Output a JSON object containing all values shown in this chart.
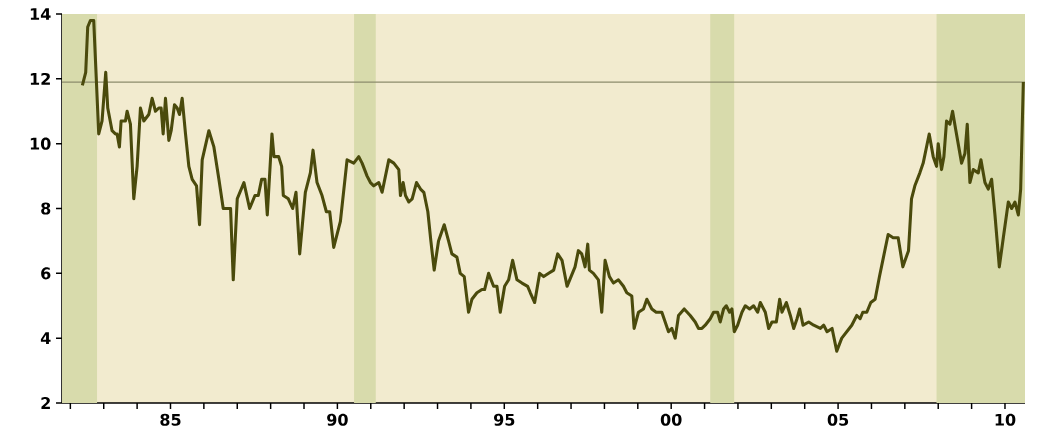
{
  "chart_data": {
    "type": "line",
    "x": [
      1982.36,
      1982.46,
      1982.52,
      1982.6,
      1982.7,
      1982.85,
      1982.95,
      1983.06,
      1983.12,
      1983.25,
      1983.35,
      1983.4,
      1983.47,
      1983.52,
      1983.65,
      1983.7,
      1983.8,
      1983.9,
      1984.0,
      1984.1,
      1984.2,
      1984.35,
      1984.45,
      1984.55,
      1984.65,
      1984.72,
      1984.78,
      1984.85,
      1984.95,
      1985.02,
      1985.12,
      1985.2,
      1985.27,
      1985.35,
      1985.45,
      1985.55,
      1985.65,
      1985.78,
      1985.87,
      1985.95,
      1986.15,
      1986.3,
      1986.45,
      1986.58,
      1986.8,
      1986.88,
      1987.0,
      1987.2,
      1987.37,
      1987.53,
      1987.63,
      1987.73,
      1987.83,
      1987.9,
      1988.04,
      1988.1,
      1988.24,
      1988.33,
      1988.38,
      1988.53,
      1988.66,
      1988.76,
      1988.87,
      1989.04,
      1989.19,
      1989.27,
      1989.39,
      1989.54,
      1989.67,
      1989.77,
      1989.89,
      1990.09,
      1990.29,
      1990.49,
      1990.64,
      1990.74,
      1990.89,
      1990.99,
      1991.09,
      1991.24,
      1991.34,
      1991.54,
      1991.69,
      1991.84,
      1991.89,
      1991.97,
      1992.04,
      1992.14,
      1992.24,
      1992.37,
      1992.49,
      1992.59,
      1992.71,
      1992.8,
      1992.9,
      1993.03,
      1993.2,
      1993.33,
      1993.43,
      1993.58,
      1993.68,
      1993.8,
      1993.93,
      1994.03,
      1994.18,
      1994.33,
      1994.41,
      1994.53,
      1994.68,
      1994.78,
      1994.88,
      1995.01,
      1995.13,
      1995.25,
      1995.38,
      1995.53,
      1995.7,
      1995.78,
      1995.91,
      1996.06,
      1996.18,
      1996.33,
      1996.48,
      1996.6,
      1996.73,
      1996.88,
      1997.0,
      1997.12,
      1997.22,
      1997.32,
      1997.42,
      1997.5,
      1997.55,
      1997.67,
      1997.82,
      1997.92,
      1998.02,
      1998.15,
      1998.27,
      1998.42,
      1998.57,
      1998.67,
      1998.82,
      1998.89,
      1999.02,
      1999.17,
      1999.27,
      1999.42,
      1999.55,
      1999.72,
      1999.92,
      2000.02,
      2000.12,
      2000.22,
      2000.39,
      2000.57,
      2000.72,
      2000.82,
      2000.92,
      2001.02,
      2001.17,
      2001.27,
      2001.39,
      2001.47,
      2001.57,
      2001.65,
      2001.75,
      2001.82,
      2001.89,
      2001.99,
      2002.12,
      2002.22,
      2002.35,
      2002.47,
      2002.59,
      2002.67,
      2002.82,
      2002.92,
      2003.02,
      2003.15,
      2003.25,
      2003.32,
      2003.45,
      2003.57,
      2003.67,
      2003.77,
      2003.85,
      2003.95,
      2004.12,
      2004.27,
      2004.47,
      2004.57,
      2004.67,
      2004.82,
      2004.96,
      2005.11,
      2005.26,
      2005.41,
      2005.56,
      2005.66,
      2005.74,
      2005.86,
      2005.98,
      2006.11,
      2006.24,
      2006.36,
      2006.5,
      2006.65,
      2006.8,
      2006.94,
      2007.11,
      2007.2,
      2007.3,
      2007.45,
      2007.55,
      2007.73,
      2007.85,
      2007.95,
      2008.0,
      2008.1,
      2008.17,
      2008.25,
      2008.35,
      2008.43,
      2008.53,
      2008.7,
      2008.8,
      2008.87,
      2008.95,
      2009.05,
      2009.2,
      2009.28,
      2009.4,
      2009.5,
      2009.6,
      2009.7,
      2009.83,
      2009.95,
      2010.1,
      2010.2,
      2010.3,
      2010.4,
      2010.47,
      2010.55
    ],
    "values": [
      11.8,
      12.2,
      13.6,
      13.8,
      13.8,
      10.3,
      10.7,
      12.2,
      11.1,
      10.4,
      10.3,
      10.3,
      9.9,
      10.7,
      10.7,
      11.0,
      10.6,
      8.3,
      9.3,
      11.1,
      10.7,
      10.9,
      11.4,
      11.0,
      11.1,
      11.1,
      10.3,
      11.4,
      10.1,
      10.4,
      11.2,
      11.1,
      10.9,
      11.4,
      10.3,
      9.3,
      8.9,
      8.7,
      7.5,
      9.5,
      10.4,
      9.9,
      8.9,
      8.0,
      8.0,
      5.8,
      8.3,
      8.8,
      8.0,
      8.4,
      8.4,
      8.9,
      8.9,
      7.8,
      10.3,
      9.6,
      9.6,
      9.3,
      8.4,
      8.3,
      8.0,
      8.5,
      6.6,
      8.5,
      9.1,
      9.8,
      8.8,
      8.4,
      7.9,
      7.9,
      6.8,
      7.6,
      9.5,
      9.4,
      9.6,
      9.4,
      9.0,
      8.8,
      8.7,
      8.8,
      8.5,
      9.5,
      9.4,
      9.2,
      8.4,
      8.8,
      8.4,
      8.2,
      8.3,
      8.8,
      8.6,
      8.5,
      7.9,
      7.0,
      6.1,
      7.0,
      7.5,
      7.0,
      6.6,
      6.5,
      6.0,
      5.9,
      4.8,
      5.2,
      5.4,
      5.5,
      5.5,
      6.0,
      5.6,
      5.6,
      4.8,
      5.6,
      5.8,
      6.4,
      5.8,
      5.7,
      5.6,
      5.4,
      5.1,
      6.0,
      5.9,
      6.0,
      6.1,
      6.6,
      6.4,
      5.6,
      5.9,
      6.2,
      6.7,
      6.6,
      6.2,
      6.9,
      6.1,
      6.0,
      5.8,
      4.8,
      6.4,
      5.9,
      5.7,
      5.8,
      5.6,
      5.4,
      5.3,
      4.3,
      4.8,
      4.9,
      5.2,
      4.9,
      4.8,
      4.8,
      4.2,
      4.3,
      4.0,
      4.7,
      4.9,
      4.7,
      4.5,
      4.3,
      4.3,
      4.4,
      4.6,
      4.8,
      4.8,
      4.5,
      4.9,
      5.0,
      4.8,
      4.9,
      4.2,
      4.4,
      4.8,
      5.0,
      4.9,
      5.0,
      4.8,
      5.1,
      4.8,
      4.3,
      4.5,
      4.5,
      5.2,
      4.8,
      5.1,
      4.7,
      4.3,
      4.6,
      4.9,
      4.4,
      4.5,
      4.4,
      4.3,
      4.4,
      4.2,
      4.3,
      3.6,
      4.0,
      4.2,
      4.4,
      4.7,
      4.6,
      4.8,
      4.8,
      5.1,
      5.2,
      5.9,
      6.5,
      7.2,
      7.1,
      7.1,
      6.2,
      6.7,
      8.3,
      8.7,
      9.1,
      9.4,
      10.3,
      9.6,
      9.3,
      10.0,
      9.2,
      9.6,
      10.7,
      10.6,
      11.0,
      10.4,
      9.4,
      9.7,
      10.6,
      8.8,
      9.2,
      9.1,
      9.5,
      8.8,
      8.6,
      8.9,
      7.8,
      6.2,
      7.1,
      8.2,
      8.0,
      8.2,
      7.8,
      8.6,
      11.9
    ],
    "color": "#4a4a0c",
    "xlim": [
      1981.75,
      2010.6
    ],
    "ylim": [
      2,
      14
    ],
    "xticks": [
      {
        "value": 1982,
        "label": null
      },
      {
        "value": 1983,
        "label": null
      },
      {
        "value": 1984,
        "label": null
      },
      {
        "value": 1985,
        "label": "85"
      },
      {
        "value": 1986,
        "label": null
      },
      {
        "value": 1987,
        "label": null
      },
      {
        "value": 1988,
        "label": null
      },
      {
        "value": 1989,
        "label": null
      },
      {
        "value": 1990,
        "label": "90"
      },
      {
        "value": 1991,
        "label": null
      },
      {
        "value": 1992,
        "label": null
      },
      {
        "value": 1993,
        "label": null
      },
      {
        "value": 1994,
        "label": null
      },
      {
        "value": 1995,
        "label": "95"
      },
      {
        "value": 1996,
        "label": null
      },
      {
        "value": 1997,
        "label": null
      },
      {
        "value": 1998,
        "label": null
      },
      {
        "value": 1999,
        "label": null
      },
      {
        "value": 2000,
        "label": "00"
      },
      {
        "value": 2001,
        "label": null
      },
      {
        "value": 2002,
        "label": null
      },
      {
        "value": 2003,
        "label": null
      },
      {
        "value": 2004,
        "label": null
      },
      {
        "value": 2005,
        "label": "05"
      },
      {
        "value": 2006,
        "label": null
      },
      {
        "value": 2007,
        "label": null
      },
      {
        "value": 2008,
        "label": null
      },
      {
        "value": 2009,
        "label": null
      },
      {
        "value": 2010,
        "label": "10"
      }
    ],
    "yticks": [
      2,
      4,
      6,
      8,
      10,
      12,
      14
    ],
    "ref_lines": [
      {
        "axis": "y",
        "value": 11.9,
        "color": "#8c8c6c"
      }
    ],
    "bands": [
      {
        "axis": "x",
        "from": 1981.75,
        "to": 1982.8,
        "color": "#d8dbac"
      },
      {
        "axis": "x",
        "from": 1990.5,
        "to": 1991.15,
        "color": "#d8dbac"
      },
      {
        "axis": "x",
        "from": 2001.17,
        "to": 2001.89,
        "color": "#d8dbac"
      },
      {
        "axis": "x",
        "from": 2007.95,
        "to": 2010.6,
        "color": "#d8dbac"
      }
    ],
    "grid": false
  }
}
